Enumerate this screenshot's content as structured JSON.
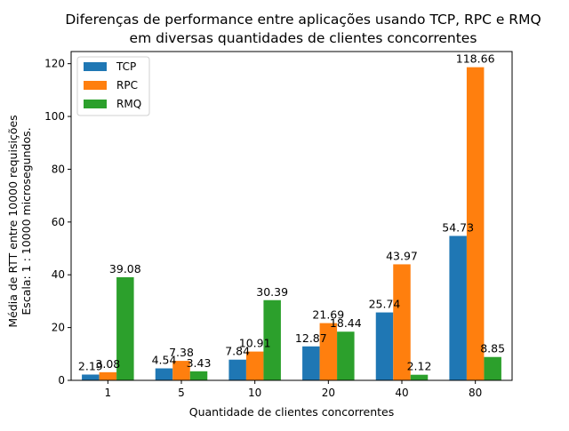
{
  "chart_data": {
    "type": "bar",
    "title": [
      "Diferenças de performance entre aplicações usando TCP, RPC e RMQ",
      "em diversas quantidades de clientes concorrentes"
    ],
    "xlabel": "Quantidade de clientes concorrentes",
    "ylabel": [
      "Média de RTT entre 10000 requisições",
      "Escala: 1 : 10000 microsegundos."
    ],
    "categories": [
      "1",
      "5",
      "10",
      "20",
      "40",
      "80"
    ],
    "ylim": [
      0,
      124.6
    ],
    "yticks": [
      0,
      20,
      40,
      60,
      80,
      100,
      120
    ],
    "grid": false,
    "legend_position": "top-left",
    "series": [
      {
        "name": "TCP",
        "color": "#1f77b4",
        "values": [
          2.19,
          4.54,
          7.84,
          12.87,
          25.74,
          54.73
        ]
      },
      {
        "name": "RPC",
        "color": "#ff7f0e",
        "values": [
          3.08,
          7.38,
          10.91,
          21.69,
          43.97,
          118.66
        ]
      },
      {
        "name": "RMQ",
        "color": "#2ca02c",
        "values": [
          39.08,
          3.43,
          30.39,
          18.44,
          2.12,
          8.85
        ]
      }
    ]
  }
}
